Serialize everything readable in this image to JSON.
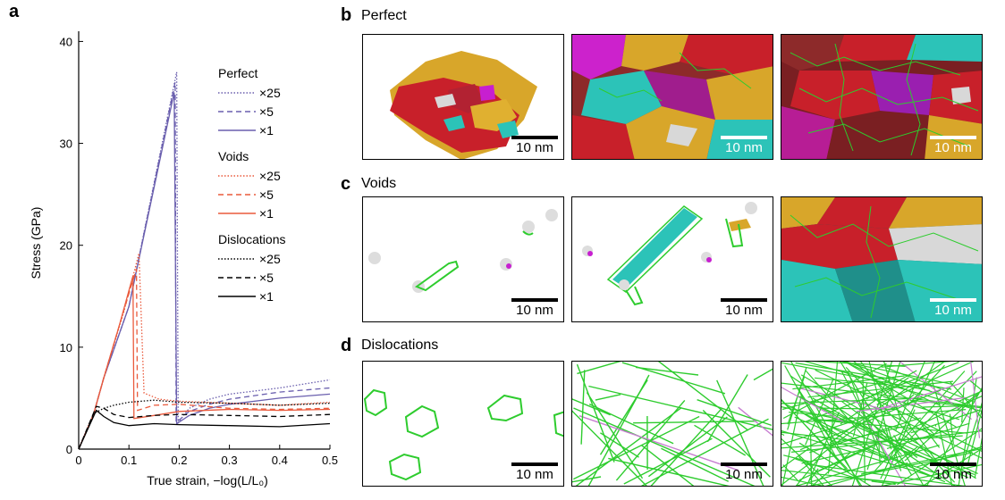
{
  "figure": {
    "panel_a_label": "a",
    "panel_b_label": "b",
    "panel_c_label": "c",
    "panel_d_label": "d",
    "panel_b_title": "Perfect",
    "panel_c_title": "Voids",
    "panel_d_title": "Dislocations",
    "scale_bar_label": "10 nm"
  },
  "chart_data": {
    "type": "line",
    "xlabel": "True strain, −log(L/L₀)",
    "ylabel": "Stress (GPa)",
    "xlim": [
      0,
      0.5
    ],
    "ylim": [
      0,
      41
    ],
    "xticks": [
      0,
      0.1,
      0.2,
      0.3,
      0.4,
      0.5
    ],
    "xtick_labels": [
      "0",
      "0.1",
      "0.2",
      "0.3",
      "0.4",
      "0.5"
    ],
    "yticks": [
      0,
      10,
      20,
      30,
      40
    ],
    "ytick_labels": [
      "0",
      "10",
      "20",
      "30",
      "40"
    ],
    "legend_groups": [
      {
        "title": "Perfect",
        "color": "#6a5fae",
        "entries": [
          "×25",
          "×5",
          "×1"
        ]
      },
      {
        "title": "Voids",
        "color": "#ea5a3c",
        "entries": [
          "×25",
          "×5",
          "×1"
        ]
      },
      {
        "title": "Dislocations",
        "color": "#000000",
        "entries": [
          "×25",
          "×5",
          "×1"
        ]
      }
    ],
    "series": [
      {
        "name": "Perfect ×25",
        "color": "#6a5fae",
        "dash": "dot",
        "points": [
          [
            0,
            0
          ],
          [
            0.03,
            3.5
          ],
          [
            0.05,
            7
          ],
          [
            0.1,
            14
          ],
          [
            0.195,
            37
          ],
          [
            0.198,
            2.6
          ],
          [
            0.22,
            4
          ],
          [
            0.26,
            4.9
          ],
          [
            0.3,
            5.4
          ],
          [
            0.4,
            6
          ],
          [
            0.5,
            6.8
          ]
        ]
      },
      {
        "name": "Perfect ×5",
        "color": "#6a5fae",
        "dash": "dash",
        "points": [
          [
            0,
            0
          ],
          [
            0.03,
            3.5
          ],
          [
            0.05,
            7
          ],
          [
            0.1,
            14
          ],
          [
            0.192,
            36
          ],
          [
            0.194,
            2.6
          ],
          [
            0.22,
            3.7
          ],
          [
            0.26,
            4.4
          ],
          [
            0.3,
            4.9
          ],
          [
            0.4,
            5.6
          ],
          [
            0.5,
            6
          ]
        ]
      },
      {
        "name": "Perfect ×1",
        "color": "#6a5fae",
        "dash": "solid",
        "points": [
          [
            0,
            0
          ],
          [
            0.03,
            3.5
          ],
          [
            0.05,
            7
          ],
          [
            0.1,
            14
          ],
          [
            0.19,
            35
          ],
          [
            0.195,
            2.5
          ],
          [
            0.22,
            3.3
          ],
          [
            0.26,
            4
          ],
          [
            0.3,
            4.4
          ],
          [
            0.4,
            5
          ],
          [
            0.5,
            5.4
          ]
        ]
      },
      {
        "name": "Voids ×25",
        "color": "#ea5a3c",
        "dash": "dot",
        "points": [
          [
            0,
            0
          ],
          [
            0.03,
            3.5
          ],
          [
            0.05,
            7
          ],
          [
            0.09,
            13.5
          ],
          [
            0.12,
            19.2
          ],
          [
            0.13,
            5.5
          ],
          [
            0.16,
            4.9
          ],
          [
            0.2,
            4.7
          ],
          [
            0.3,
            4.5
          ],
          [
            0.4,
            4.3
          ],
          [
            0.5,
            4.6
          ]
        ]
      },
      {
        "name": "Voids ×5",
        "color": "#ea5a3c",
        "dash": "dash",
        "points": [
          [
            0,
            0
          ],
          [
            0.03,
            3.5
          ],
          [
            0.05,
            7
          ],
          [
            0.08,
            12
          ],
          [
            0.115,
            17.7
          ],
          [
            0.117,
            3.8
          ],
          [
            0.15,
            4.3
          ],
          [
            0.2,
            4.4
          ],
          [
            0.3,
            4
          ],
          [
            0.4,
            3.9
          ],
          [
            0.5,
            4
          ]
        ]
      },
      {
        "name": "Voids ×1",
        "color": "#ea5a3c",
        "dash": "solid",
        "points": [
          [
            0,
            0
          ],
          [
            0.03,
            3.5
          ],
          [
            0.05,
            7
          ],
          [
            0.08,
            12
          ],
          [
            0.108,
            17
          ],
          [
            0.11,
            3
          ],
          [
            0.15,
            3.3
          ],
          [
            0.2,
            3.7
          ],
          [
            0.3,
            3.9
          ],
          [
            0.4,
            3.8
          ],
          [
            0.5,
            3.9
          ]
        ]
      },
      {
        "name": "Dislocations ×25",
        "color": "#000000",
        "dash": "dot",
        "points": [
          [
            0,
            0
          ],
          [
            0.03,
            3.5
          ],
          [
            0.05,
            4
          ],
          [
            0.07,
            4.3
          ],
          [
            0.1,
            4.6
          ],
          [
            0.15,
            4.8
          ],
          [
            0.2,
            4.6
          ],
          [
            0.3,
            4.5
          ],
          [
            0.4,
            4.3
          ],
          [
            0.5,
            4.5
          ]
        ]
      },
      {
        "name": "Dislocations ×5",
        "color": "#000000",
        "dash": "dash",
        "points": [
          [
            0,
            0
          ],
          [
            0.035,
            4.2
          ],
          [
            0.05,
            4
          ],
          [
            0.07,
            3.4
          ],
          [
            0.1,
            3.1
          ],
          [
            0.15,
            3.3
          ],
          [
            0.2,
            3.4
          ],
          [
            0.3,
            3.3
          ],
          [
            0.4,
            3.2
          ],
          [
            0.5,
            3.4
          ]
        ]
      },
      {
        "name": "Dislocations ×1",
        "color": "#000000",
        "dash": "solid",
        "points": [
          [
            0,
            0
          ],
          [
            0.035,
            3.8
          ],
          [
            0.05,
            3.2
          ],
          [
            0.07,
            2.6
          ],
          [
            0.1,
            2.3
          ],
          [
            0.15,
            2.5
          ],
          [
            0.2,
            2.4
          ],
          [
            0.3,
            2.3
          ],
          [
            0.4,
            2.2
          ],
          [
            0.5,
            2.5
          ]
        ]
      }
    ]
  }
}
